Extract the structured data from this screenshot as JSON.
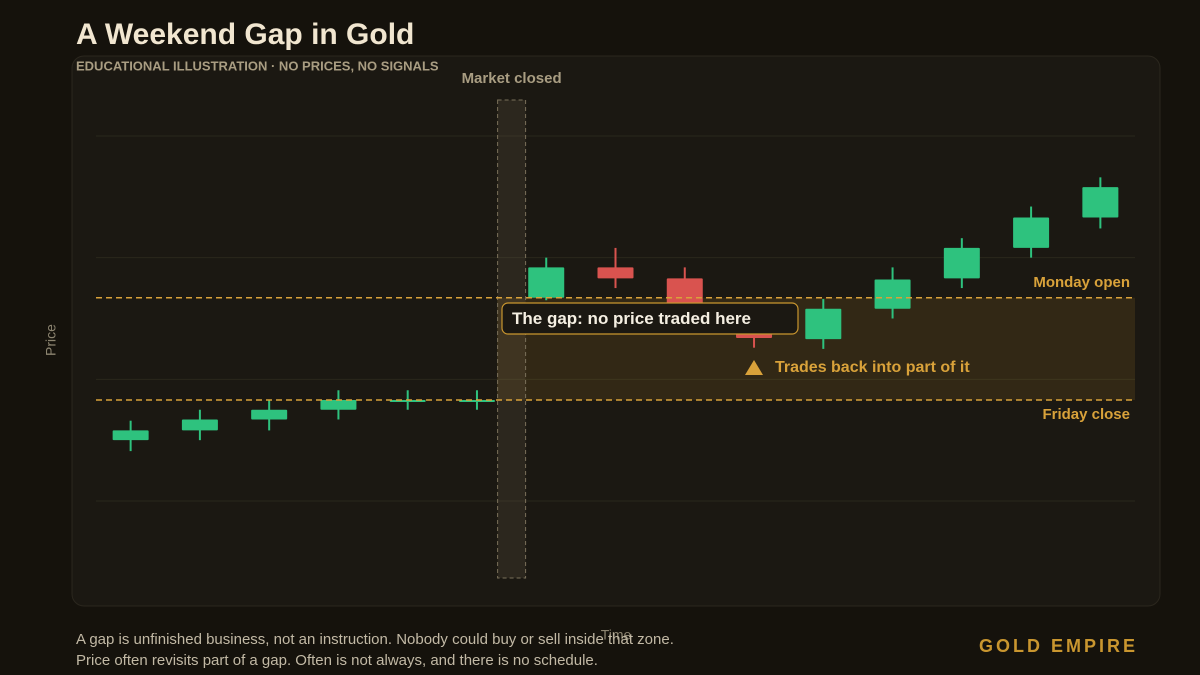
{
  "chart_data": {
    "type": "candlestick",
    "title": "A Weekend Gap in Gold",
    "subtitle": "EDUCATIONAL ILLUSTRATION · NO PRICES, NO SIGNALS",
    "y_label": "Price",
    "x_label": "Time",
    "categories": [
      null,
      null,
      null,
      null,
      null,
      null,
      null,
      null,
      null,
      null,
      null,
      null,
      null,
      null,
      null
    ],
    "open": [
      15.0,
      15.8,
      16.7,
      17.5,
      18.2,
      18.2,
      26.7,
      29.2,
      28.3,
      25.0,
      23.3,
      25.8,
      28.3,
      30.8,
      33.3
    ],
    "high": [
      16.6,
      17.5,
      18.3,
      19.1,
      19.1,
      19.1,
      30.0,
      30.8,
      29.2,
      25.9,
      26.6,
      29.2,
      31.6,
      34.2,
      36.6
    ],
    "low": [
      14.1,
      15.0,
      15.8,
      16.7,
      17.5,
      17.5,
      26.5,
      27.5,
      26.1,
      22.6,
      22.5,
      25.0,
      27.5,
      30.0,
      32.4
    ],
    "close": [
      15.8,
      16.7,
      17.5,
      18.3,
      18.3,
      18.3,
      29.2,
      28.3,
      26.1,
      23.4,
      25.8,
      28.2,
      30.8,
      33.3,
      35.8
    ],
    "up_color": "#2ec27e",
    "down_color": "#d9534f",
    "ylim": [
      4,
      44
    ],
    "yticks": [
      10,
      20,
      30,
      40
    ],
    "grid": true,
    "reference_lines": [
      {
        "label": "Monday open",
        "value": 26.7
      },
      {
        "label": "Friday close",
        "value": 18.3
      }
    ],
    "annotations": [
      "Market closed",
      "The gap: no price traded here",
      "Trades back into part of it"
    ],
    "notes": [
      "A gap is unfinished business, not an instruction. Nobody could buy or sell inside that zone.",
      "Price often revisits part of a gap. Often is not always, and there is no schedule."
    ],
    "brand": "GOLD EMPIRE"
  }
}
